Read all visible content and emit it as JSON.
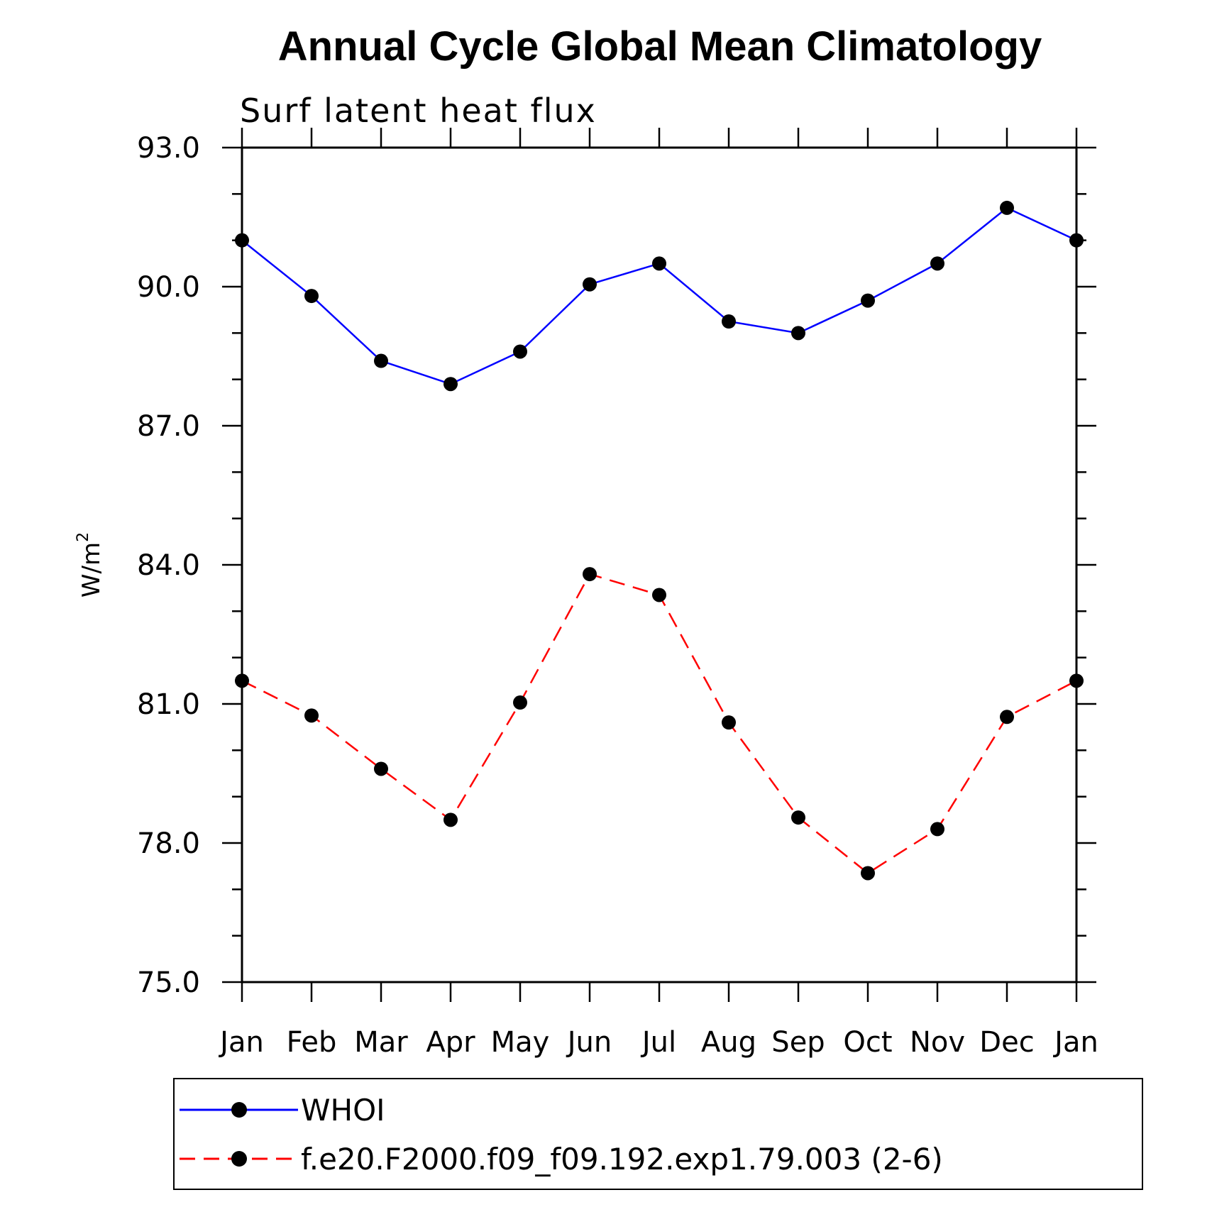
{
  "chart_data": {
    "type": "line",
    "title": "Annual Cycle Global Mean Climatology",
    "subtitle": "Surf latent heat flux",
    "ylabel": "W/m",
    "ylabel_superscript": "2",
    "xlabel": "",
    "categories": [
      "Jan",
      "Feb",
      "Mar",
      "Apr",
      "May",
      "Jun",
      "Jul",
      "Aug",
      "Sep",
      "Oct",
      "Nov",
      "Dec",
      "Jan"
    ],
    "ylim": [
      75.0,
      93.0
    ],
    "yticks": [
      75.0,
      78.0,
      81.0,
      84.0,
      87.0,
      90.0,
      93.0
    ],
    "ytick_labels": [
      "75.0",
      "78.0",
      "81.0",
      "84.0",
      "87.0",
      "90.0",
      "93.0"
    ],
    "grid": false,
    "legend_position": "bottom",
    "series": [
      {
        "name": "WHOI",
        "color": "#0000ff",
        "line_style": "solid",
        "values": [
          91.0,
          89.8,
          88.4,
          87.9,
          88.6,
          90.05,
          90.5,
          89.25,
          89.0,
          89.7,
          90.5,
          91.7,
          91.0
        ]
      },
      {
        "name": "f.e20.F2000.f09_f09.192.exp1.79.003 (2-6)",
        "color": "#ff0000",
        "line_style": "dashed",
        "values": [
          81.5,
          80.75,
          79.6,
          78.5,
          81.03,
          83.8,
          83.35,
          80.6,
          78.55,
          77.35,
          78.3,
          80.72,
          81.5
        ]
      }
    ]
  }
}
